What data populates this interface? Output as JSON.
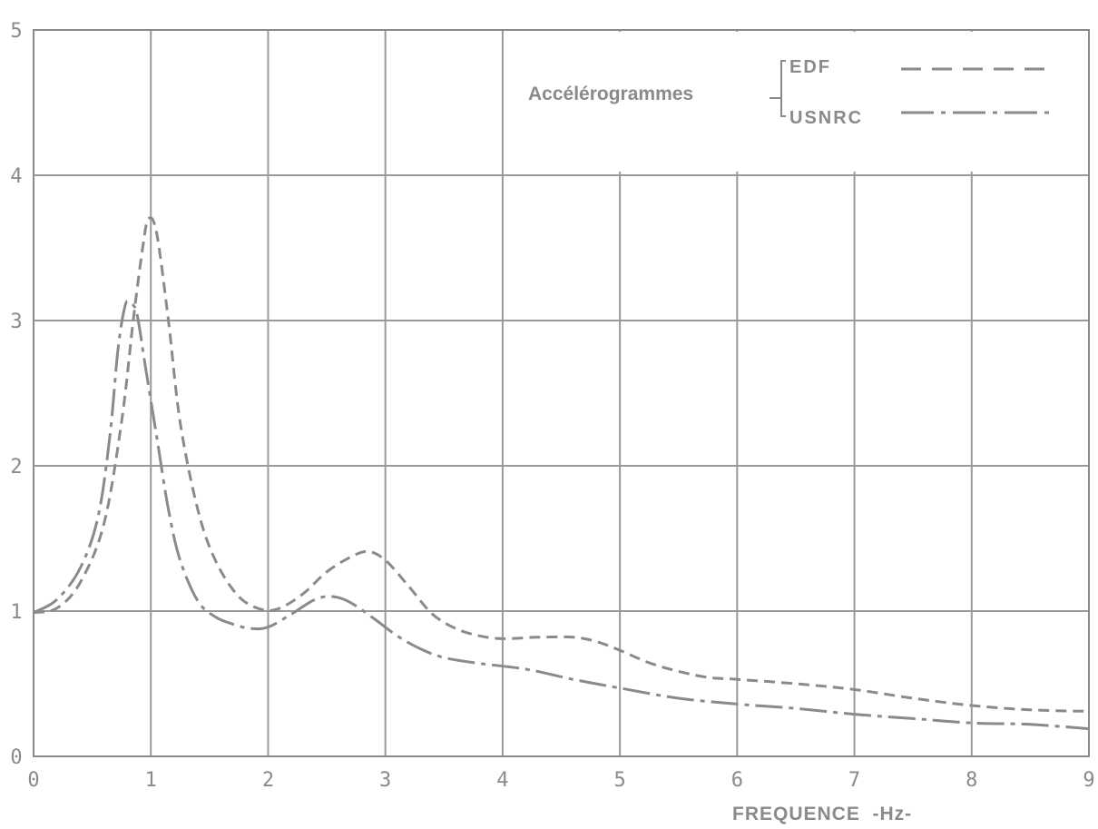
{
  "chart_data": {
    "type": "line",
    "title": "",
    "xlabel": "FREQUENCE  -Hz-",
    "ylabel": "",
    "xlim": [
      0,
      9
    ],
    "ylim": [
      0,
      5
    ],
    "x_ticks": [
      "0",
      "1",
      "2",
      "3",
      "4",
      "5",
      "6",
      "7",
      "8",
      "9"
    ],
    "y_ticks": [
      "0",
      "1",
      "2",
      "3",
      "4",
      "5"
    ],
    "grid": true,
    "legend": {
      "title": "Accélérogrammes",
      "placement": "top-right"
    },
    "series": [
      {
        "name": "EDF",
        "style": "dashed",
        "color": "#8a8a8a",
        "points": [
          [
            0.0,
            0.99
          ],
          [
            0.2,
            1.02
          ],
          [
            0.4,
            1.2
          ],
          [
            0.6,
            1.6
          ],
          [
            0.75,
            2.3
          ],
          [
            0.85,
            3.0
          ],
          [
            0.93,
            3.5
          ],
          [
            0.98,
            3.7
          ],
          [
            1.05,
            3.6
          ],
          [
            1.15,
            3.0
          ],
          [
            1.25,
            2.3
          ],
          [
            1.4,
            1.7
          ],
          [
            1.55,
            1.35
          ],
          [
            1.75,
            1.1
          ],
          [
            1.95,
            1.01
          ],
          [
            2.1,
            1.02
          ],
          [
            2.3,
            1.12
          ],
          [
            2.5,
            1.27
          ],
          [
            2.7,
            1.37
          ],
          [
            2.85,
            1.41
          ],
          [
            3.0,
            1.35
          ],
          [
            3.2,
            1.17
          ],
          [
            3.4,
            0.98
          ],
          [
            3.6,
            0.88
          ],
          [
            3.8,
            0.83
          ],
          [
            4.0,
            0.81
          ],
          [
            4.3,
            0.82
          ],
          [
            4.6,
            0.82
          ],
          [
            4.8,
            0.79
          ],
          [
            5.0,
            0.73
          ],
          [
            5.3,
            0.63
          ],
          [
            5.7,
            0.55
          ],
          [
            6.0,
            0.53
          ],
          [
            6.5,
            0.5
          ],
          [
            7.0,
            0.46
          ],
          [
            7.5,
            0.4
          ],
          [
            8.0,
            0.35
          ],
          [
            8.5,
            0.32
          ],
          [
            9.0,
            0.31
          ]
        ]
      },
      {
        "name": "USNRC",
        "style": "dash-dot",
        "color": "#8a8a8a",
        "points": [
          [
            0.0,
            0.99
          ],
          [
            0.2,
            1.08
          ],
          [
            0.4,
            1.3
          ],
          [
            0.55,
            1.65
          ],
          [
            0.65,
            2.2
          ],
          [
            0.72,
            2.8
          ],
          [
            0.78,
            3.1
          ],
          [
            0.82,
            3.12
          ],
          [
            0.88,
            3.05
          ],
          [
            0.95,
            2.7
          ],
          [
            1.05,
            2.2
          ],
          [
            1.15,
            1.7
          ],
          [
            1.25,
            1.35
          ],
          [
            1.4,
            1.07
          ],
          [
            1.55,
            0.96
          ],
          [
            1.7,
            0.91
          ],
          [
            1.85,
            0.88
          ],
          [
            2.0,
            0.89
          ],
          [
            2.2,
            0.98
          ],
          [
            2.4,
            1.08
          ],
          [
            2.55,
            1.1
          ],
          [
            2.7,
            1.06
          ],
          [
            2.9,
            0.95
          ],
          [
            3.1,
            0.83
          ],
          [
            3.3,
            0.74
          ],
          [
            3.5,
            0.68
          ],
          [
            3.8,
            0.64
          ],
          [
            4.2,
            0.6
          ],
          [
            4.6,
            0.53
          ],
          [
            5.0,
            0.47
          ],
          [
            5.5,
            0.4
          ],
          [
            6.0,
            0.36
          ],
          [
            6.5,
            0.33
          ],
          [
            7.0,
            0.29
          ],
          [
            7.5,
            0.26
          ],
          [
            8.0,
            0.23
          ],
          [
            8.5,
            0.22
          ],
          [
            9.0,
            0.19
          ]
        ]
      }
    ]
  }
}
